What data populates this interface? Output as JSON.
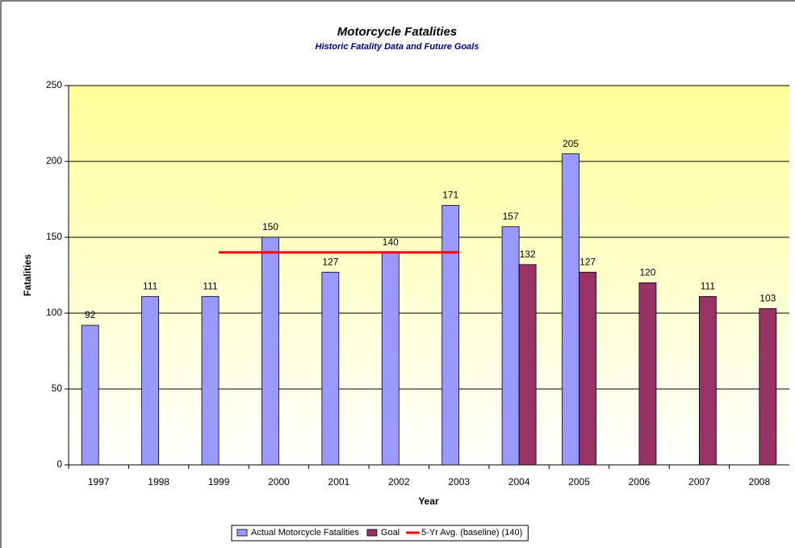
{
  "chart_data": {
    "type": "bar",
    "title": "Motorcycle Fatalities",
    "subtitle": "Historic Fatality Data and Future Goals",
    "x_label": "Year",
    "y_label": "Fatalities",
    "categories": [
      "1997",
      "1998",
      "1999",
      "2000",
      "2001",
      "2002",
      "2003",
      "2004",
      "2005",
      "2006",
      "2007",
      "2008"
    ],
    "series": [
      {
        "name": "Actual Motorcycle Fatalities",
        "type": "bar",
        "color": "#9999ff",
        "values": [
          92,
          111,
          111,
          150,
          127,
          140,
          171,
          157,
          205,
          null,
          null,
          null
        ]
      },
      {
        "name": "Goal",
        "type": "bar",
        "color": "#993366",
        "values": [
          null,
          null,
          null,
          null,
          null,
          null,
          null,
          132,
          127,
          120,
          111,
          103
        ]
      },
      {
        "name": "5-Yr Avg. (baseline) (140)",
        "type": "line",
        "color": "#ff0000",
        "values": [
          null,
          null,
          140,
          140,
          140,
          140,
          140,
          null,
          null,
          null,
          null,
          null
        ]
      }
    ],
    "ylim": [
      0,
      250
    ],
    "yticks": [
      0,
      50,
      100,
      150,
      200,
      250
    ],
    "grid": true,
    "legend": "bottom"
  }
}
